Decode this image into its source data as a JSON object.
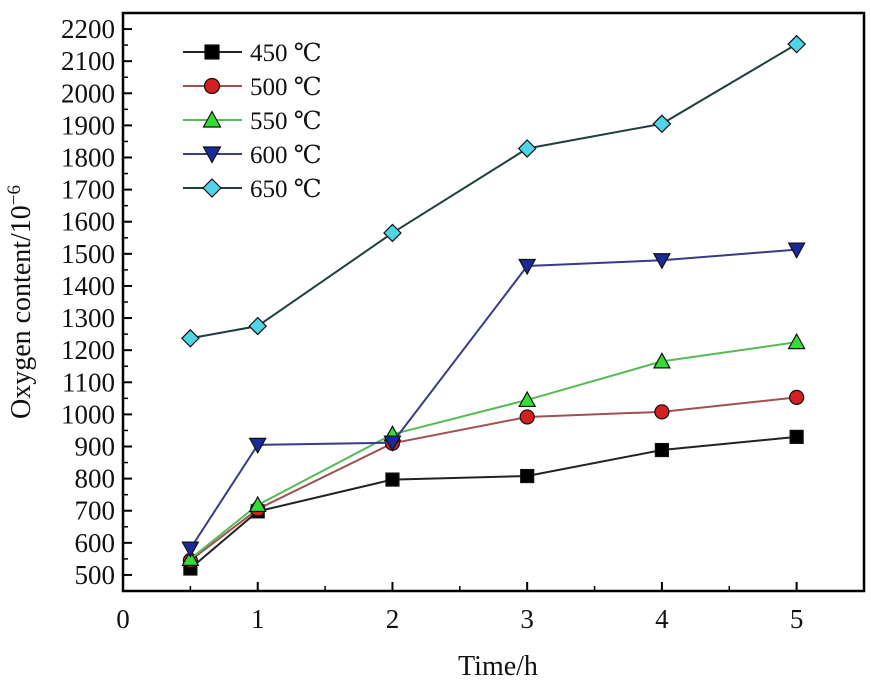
{
  "chart_data": {
    "type": "line",
    "title": "",
    "xlabel": "Time/h",
    "ylabel": "Oxygen content/10",
    "ylabel_superscript": "−6",
    "xlim": [
      0,
      5.5
    ],
    "ylim": [
      450,
      2250
    ],
    "x_ticks": [
      0,
      1,
      2,
      3,
      4,
      5
    ],
    "y_ticks": [
      500,
      600,
      700,
      800,
      900,
      1000,
      1100,
      1200,
      1300,
      1400,
      1500,
      1600,
      1700,
      1800,
      1900,
      2000,
      2100,
      2200
    ],
    "grid": false,
    "legend_position": "top-left",
    "x": [
      0.5,
      1,
      2,
      3,
      4,
      5
    ],
    "series": [
      {
        "name": "450 ℃",
        "marker": "square",
        "color": "#000000",
        "line_color": "#222222",
        "values": [
          520,
          698,
          797,
          808,
          889,
          930
        ]
      },
      {
        "name": "500 ℃",
        "marker": "circle",
        "color": "#d42020",
        "line_color": "#a05050",
        "values": [
          545,
          705,
          910,
          992,
          1008,
          1053
        ]
      },
      {
        "name": "550 ℃",
        "marker": "triangle-up",
        "color": "#33dd33",
        "line_color": "#55bb55",
        "values": [
          550,
          718,
          938,
          1045,
          1165,
          1225
        ]
      },
      {
        "name": "600 ℃",
        "marker": "triangle-down",
        "color": "#1a2a9a",
        "line_color": "#3a3a8a",
        "values": [
          582,
          905,
          912,
          1462,
          1480,
          1513
        ]
      },
      {
        "name": "650 ℃",
        "marker": "diamond",
        "color": "#4fd4e8",
        "line_color": "#1f3f3f",
        "values": [
          1237,
          1275,
          1565,
          1828,
          1905,
          2153
        ]
      }
    ]
  }
}
